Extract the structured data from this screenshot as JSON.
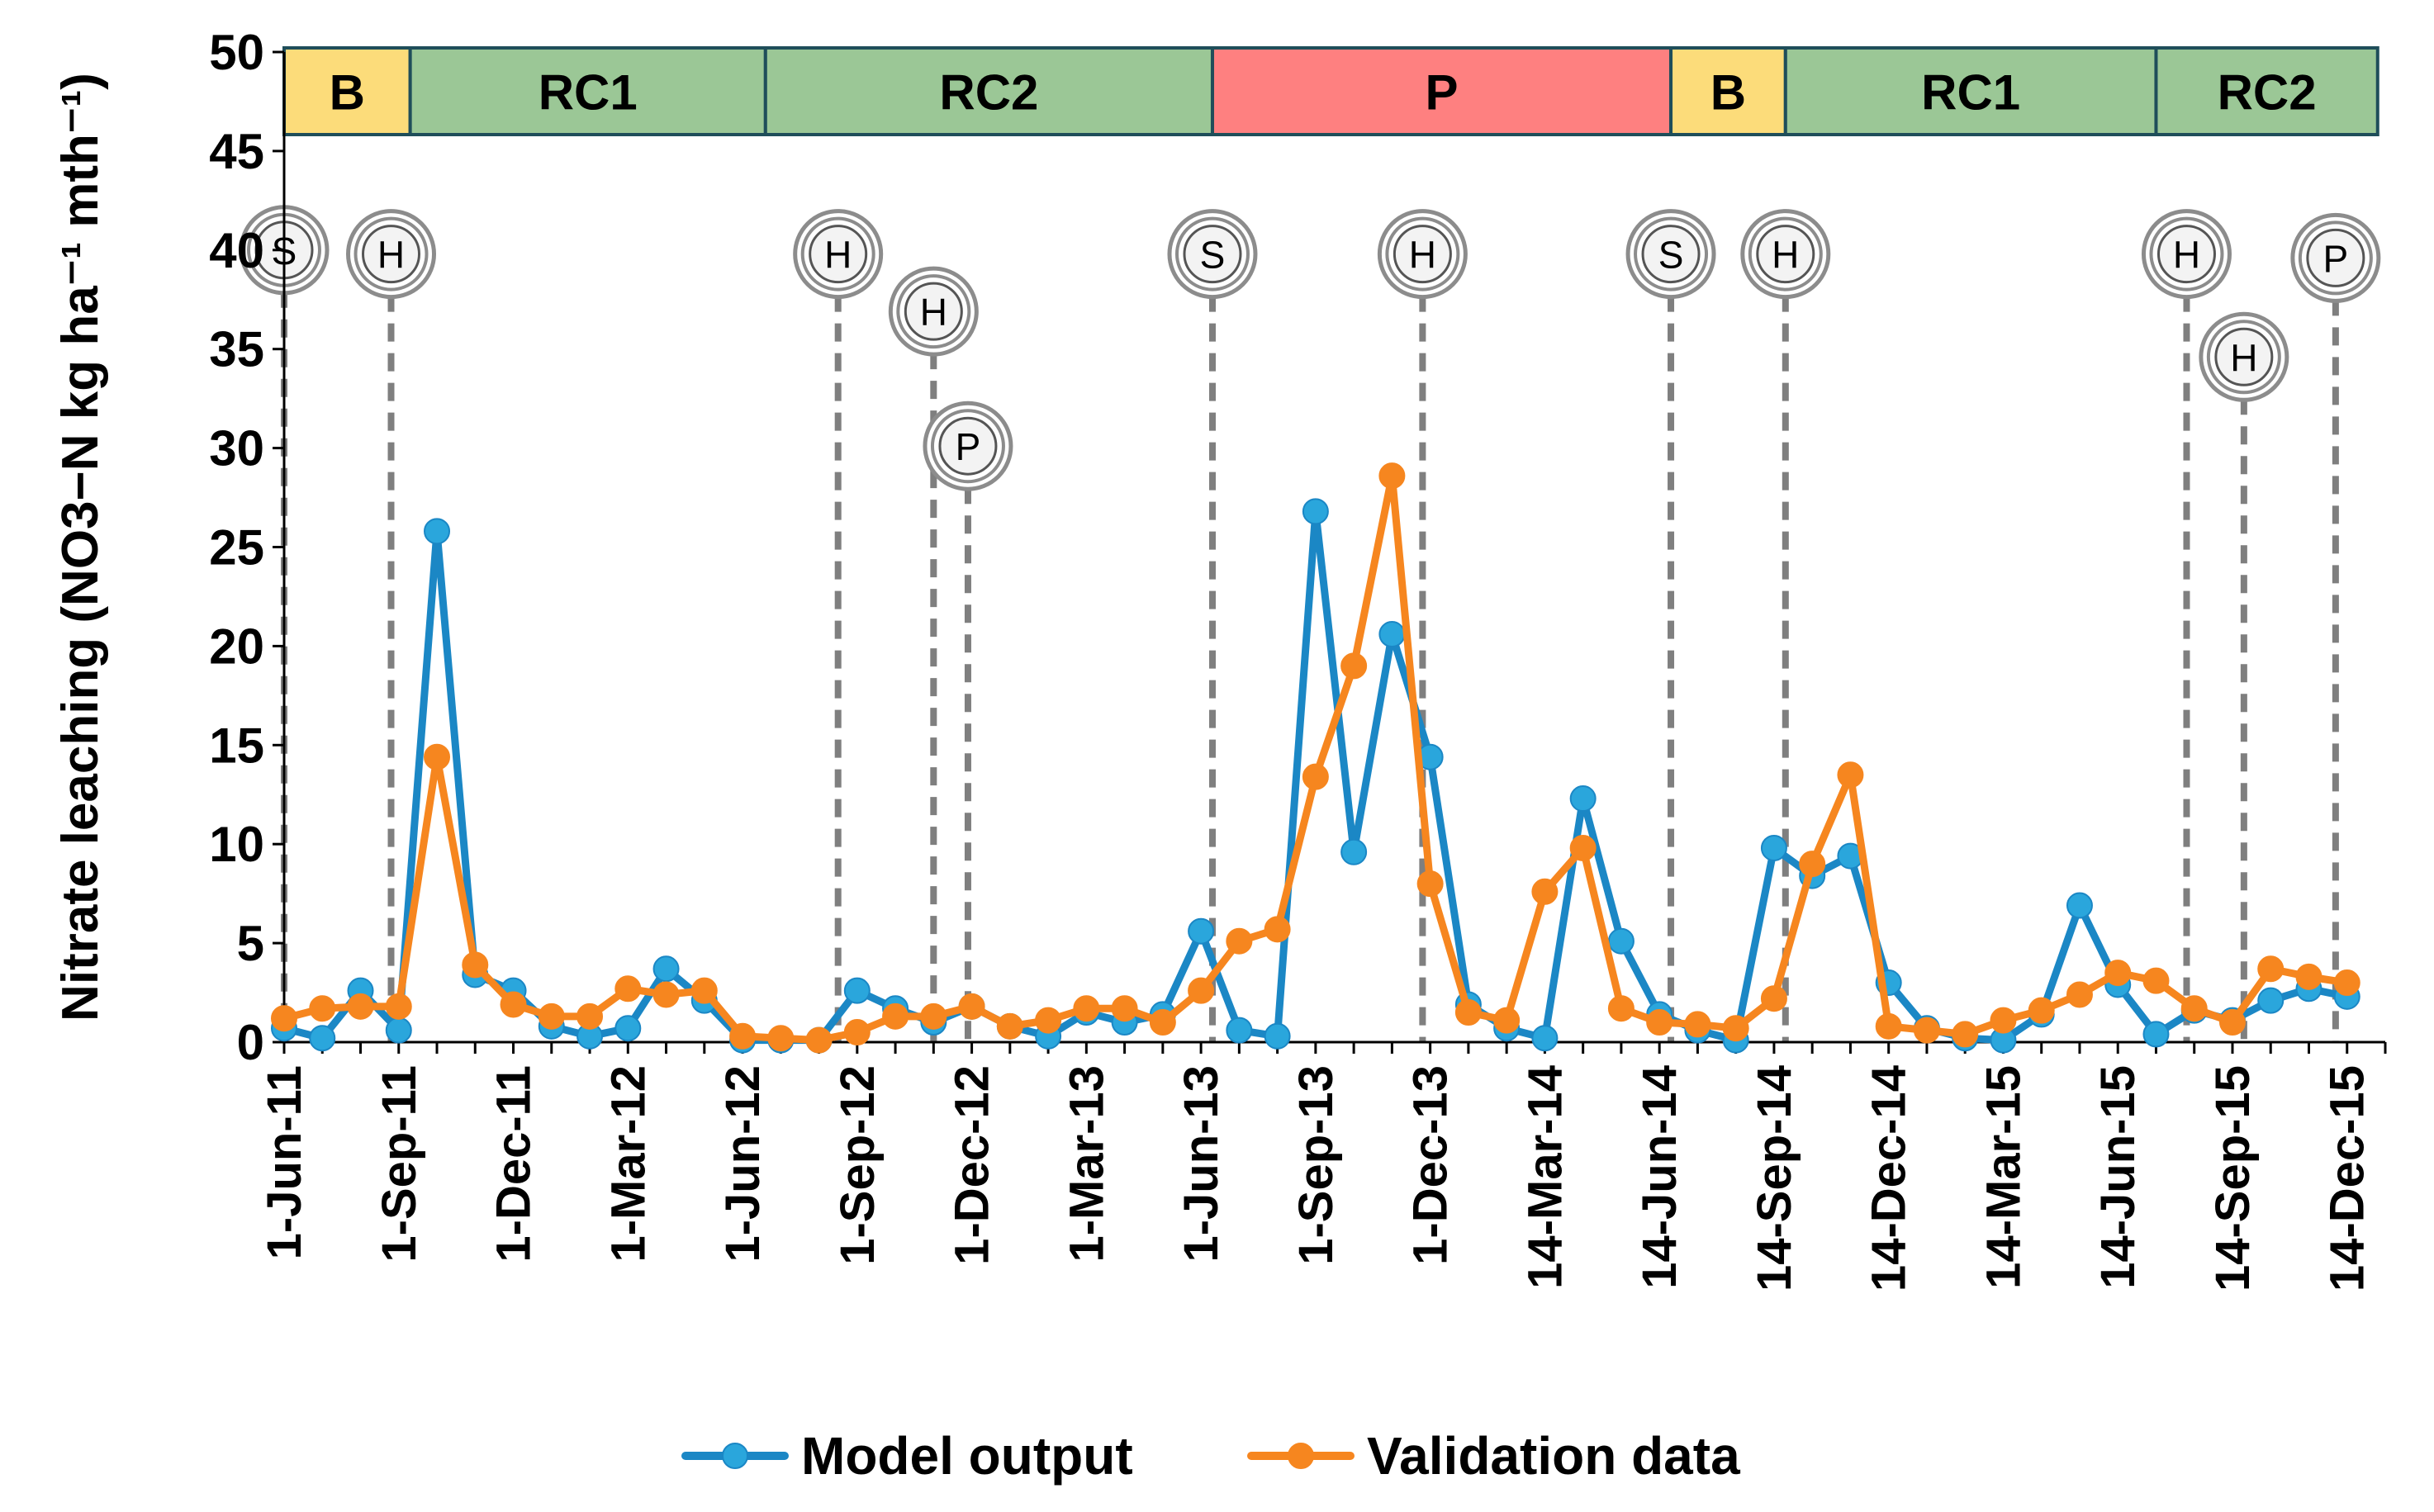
{
  "chart_data": {
    "type": "line",
    "ylabel": "Nitrate leaching (NO3−N kg ha⁻¹ mth⁻¹)",
    "xlabel": "",
    "ylim": [
      0,
      50
    ],
    "yticks": [
      0,
      5,
      10,
      15,
      20,
      25,
      30,
      35,
      40,
      45,
      50
    ],
    "grid": false,
    "legend_position": "bottom",
    "x_month_index_range": [
      0,
      55
    ],
    "x_ticks": [
      {
        "i": 0,
        "label": "1-Jun-11"
      },
      {
        "i": 3,
        "label": "1-Sep-11"
      },
      {
        "i": 6,
        "label": "1-Dec-11"
      },
      {
        "i": 9,
        "label": "1-Mar-12"
      },
      {
        "i": 12,
        "label": "1-Jun-12"
      },
      {
        "i": 15,
        "label": "1-Sep-12"
      },
      {
        "i": 18,
        "label": "1-Dec-12"
      },
      {
        "i": 21,
        "label": "1-Mar-13"
      },
      {
        "i": 24,
        "label": "1-Jun-13"
      },
      {
        "i": 27,
        "label": "1-Sep-13"
      },
      {
        "i": 30,
        "label": "1-Dec-13"
      },
      {
        "i": 33,
        "label": "14-Mar-14"
      },
      {
        "i": 36,
        "label": "14-Jun-14"
      },
      {
        "i": 39,
        "label": "14-Sep-14"
      },
      {
        "i": 42,
        "label": "14-Dec-14"
      },
      {
        "i": 45,
        "label": "14-Mar-15"
      },
      {
        "i": 48,
        "label": "14-Jun-15"
      },
      {
        "i": 51,
        "label": "14-Sep-15"
      },
      {
        "i": 54,
        "label": "14-Dec-15"
      }
    ],
    "series": [
      {
        "name": "Model output",
        "color": "#1b87c5",
        "values": [
          0.7,
          0.2,
          2.6,
          0.6,
          25.8,
          3.4,
          2.6,
          0.8,
          0.3,
          0.7,
          3.7,
          2.1,
          0.1,
          0.1,
          0.1,
          2.6,
          1.7,
          1.0,
          1.8,
          0.8,
          0.3,
          1.5,
          1.0,
          1.4,
          5.6,
          0.6,
          0.3,
          26.8,
          9.6,
          20.6,
          14.4,
          1.9,
          0.7,
          0.2,
          12.3,
          5.1,
          1.4,
          0.6,
          0.1,
          9.8,
          8.4,
          9.4,
          3.0,
          0.7,
          0.2,
          0.1,
          1.4,
          6.9,
          2.9,
          0.4,
          1.6,
          1.1,
          2.1,
          2.7,
          2.3
        ],
        "marker_fill": "#2aa6dc"
      },
      {
        "name": "Validation data",
        "color": "#f6861f",
        "values": [
          1.2,
          1.7,
          1.8,
          1.8,
          14.4,
          3.9,
          1.9,
          1.3,
          1.3,
          2.7,
          2.4,
          2.6,
          0.3,
          0.2,
          0.1,
          0.5,
          1.3,
          1.3,
          1.8,
          0.8,
          1.1,
          1.7,
          1.7,
          1.0,
          2.6,
          5.1,
          5.7,
          13.4,
          19.0,
          28.6,
          8.0,
          1.5,
          1.1,
          7.6,
          9.8,
          1.7,
          1.0,
          0.9,
          0.7,
          2.2,
          9.0,
          13.5,
          0.8,
          0.6,
          0.4,
          1.1,
          1.6,
          2.4,
          3.5,
          3.1,
          1.7,
          1.0,
          3.7,
          3.3,
          3.0
        ],
        "marker_fill": "#f6861f"
      }
    ],
    "crop_periods": [
      {
        "label": "B",
        "start": 0,
        "end": 3.3,
        "color": "#fcdc7a"
      },
      {
        "label": "RC1",
        "start": 3.3,
        "end": 12.6,
        "color": "#9bc796"
      },
      {
        "label": "RC2",
        "start": 12.6,
        "end": 24.3,
        "color": "#9bc796"
      },
      {
        "label": "P",
        "start": 24.3,
        "end": 36.3,
        "color": "#fe8080"
      },
      {
        "label": "B",
        "start": 36.3,
        "end": 39.3,
        "color": "#fcdc7a"
      },
      {
        "label": "RC1",
        "start": 39.3,
        "end": 49.0,
        "color": "#9bc796"
      },
      {
        "label": "RC2",
        "start": 49.0,
        "end": 54.8,
        "color": "#9bc796"
      }
    ],
    "events": [
      {
        "label": "S",
        "x": 0.0,
        "marker_y": 40.0
      },
      {
        "label": "H",
        "x": 2.8,
        "marker_y": 39.8
      },
      {
        "label": "H",
        "x": 14.5,
        "marker_y": 39.8
      },
      {
        "label": "H",
        "x": 17.0,
        "marker_y": 36.9
      },
      {
        "label": "P",
        "x": 17.9,
        "marker_y": 30.1
      },
      {
        "label": "S",
        "x": 24.3,
        "marker_y": 39.8
      },
      {
        "label": "H",
        "x": 29.8,
        "marker_y": 39.8
      },
      {
        "label": "S",
        "x": 36.3,
        "marker_y": 39.8
      },
      {
        "label": "H",
        "x": 39.3,
        "marker_y": 39.8
      },
      {
        "label": "H",
        "x": 49.8,
        "marker_y": 39.8
      },
      {
        "label": "H",
        "x": 51.3,
        "marker_y": 34.6
      },
      {
        "label": "P",
        "x": 53.7,
        "marker_y": 39.6
      }
    ]
  }
}
